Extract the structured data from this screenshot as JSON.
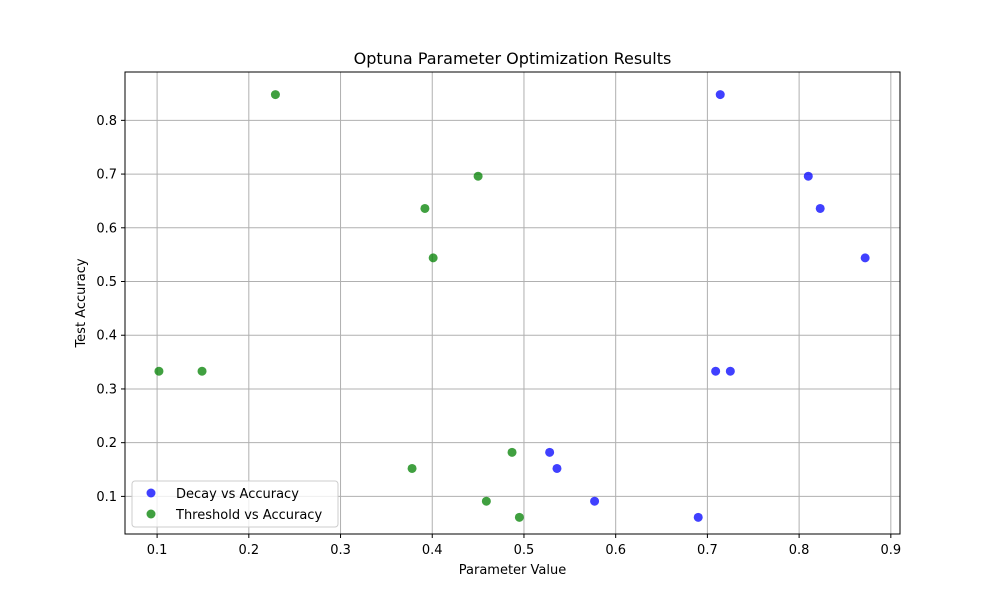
{
  "chart_data": {
    "type": "scatter",
    "title": "Optuna Parameter Optimization Results",
    "xlabel": "Parameter Value",
    "ylabel": "Test Accuracy",
    "xlim": [
      0.065,
      0.91
    ],
    "ylim": [
      0.03,
      0.89
    ],
    "xticks": [
      "0.1",
      "0.2",
      "0.3",
      "0.4",
      "0.5",
      "0.6",
      "0.7",
      "0.8",
      "0.9"
    ],
    "yticks": [
      "0.1",
      "0.2",
      "0.3",
      "0.4",
      "0.5",
      "0.6",
      "0.7",
      "0.8"
    ],
    "grid": true,
    "legend_position": "lower-left",
    "series": [
      {
        "name": "Decay vs Accuracy",
        "color": "#0000ff",
        "points": [
          {
            "x": 0.714,
            "y": 0.848
          },
          {
            "x": 0.81,
            "y": 0.696
          },
          {
            "x": 0.823,
            "y": 0.636
          },
          {
            "x": 0.872,
            "y": 0.544
          },
          {
            "x": 0.709,
            "y": 0.333
          },
          {
            "x": 0.725,
            "y": 0.333
          },
          {
            "x": 0.528,
            "y": 0.182
          },
          {
            "x": 0.536,
            "y": 0.152
          },
          {
            "x": 0.577,
            "y": 0.091
          },
          {
            "x": 0.69,
            "y": 0.061
          }
        ]
      },
      {
        "name": "Threshold vs Accuracy",
        "color": "#008000",
        "points": [
          {
            "x": 0.229,
            "y": 0.848
          },
          {
            "x": 0.45,
            "y": 0.696
          },
          {
            "x": 0.392,
            "y": 0.636
          },
          {
            "x": 0.401,
            "y": 0.544
          },
          {
            "x": 0.102,
            "y": 0.333
          },
          {
            "x": 0.149,
            "y": 0.333
          },
          {
            "x": 0.487,
            "y": 0.182
          },
          {
            "x": 0.378,
            "y": 0.152
          },
          {
            "x": 0.459,
            "y": 0.091
          },
          {
            "x": 0.495,
            "y": 0.061
          }
        ]
      }
    ]
  }
}
